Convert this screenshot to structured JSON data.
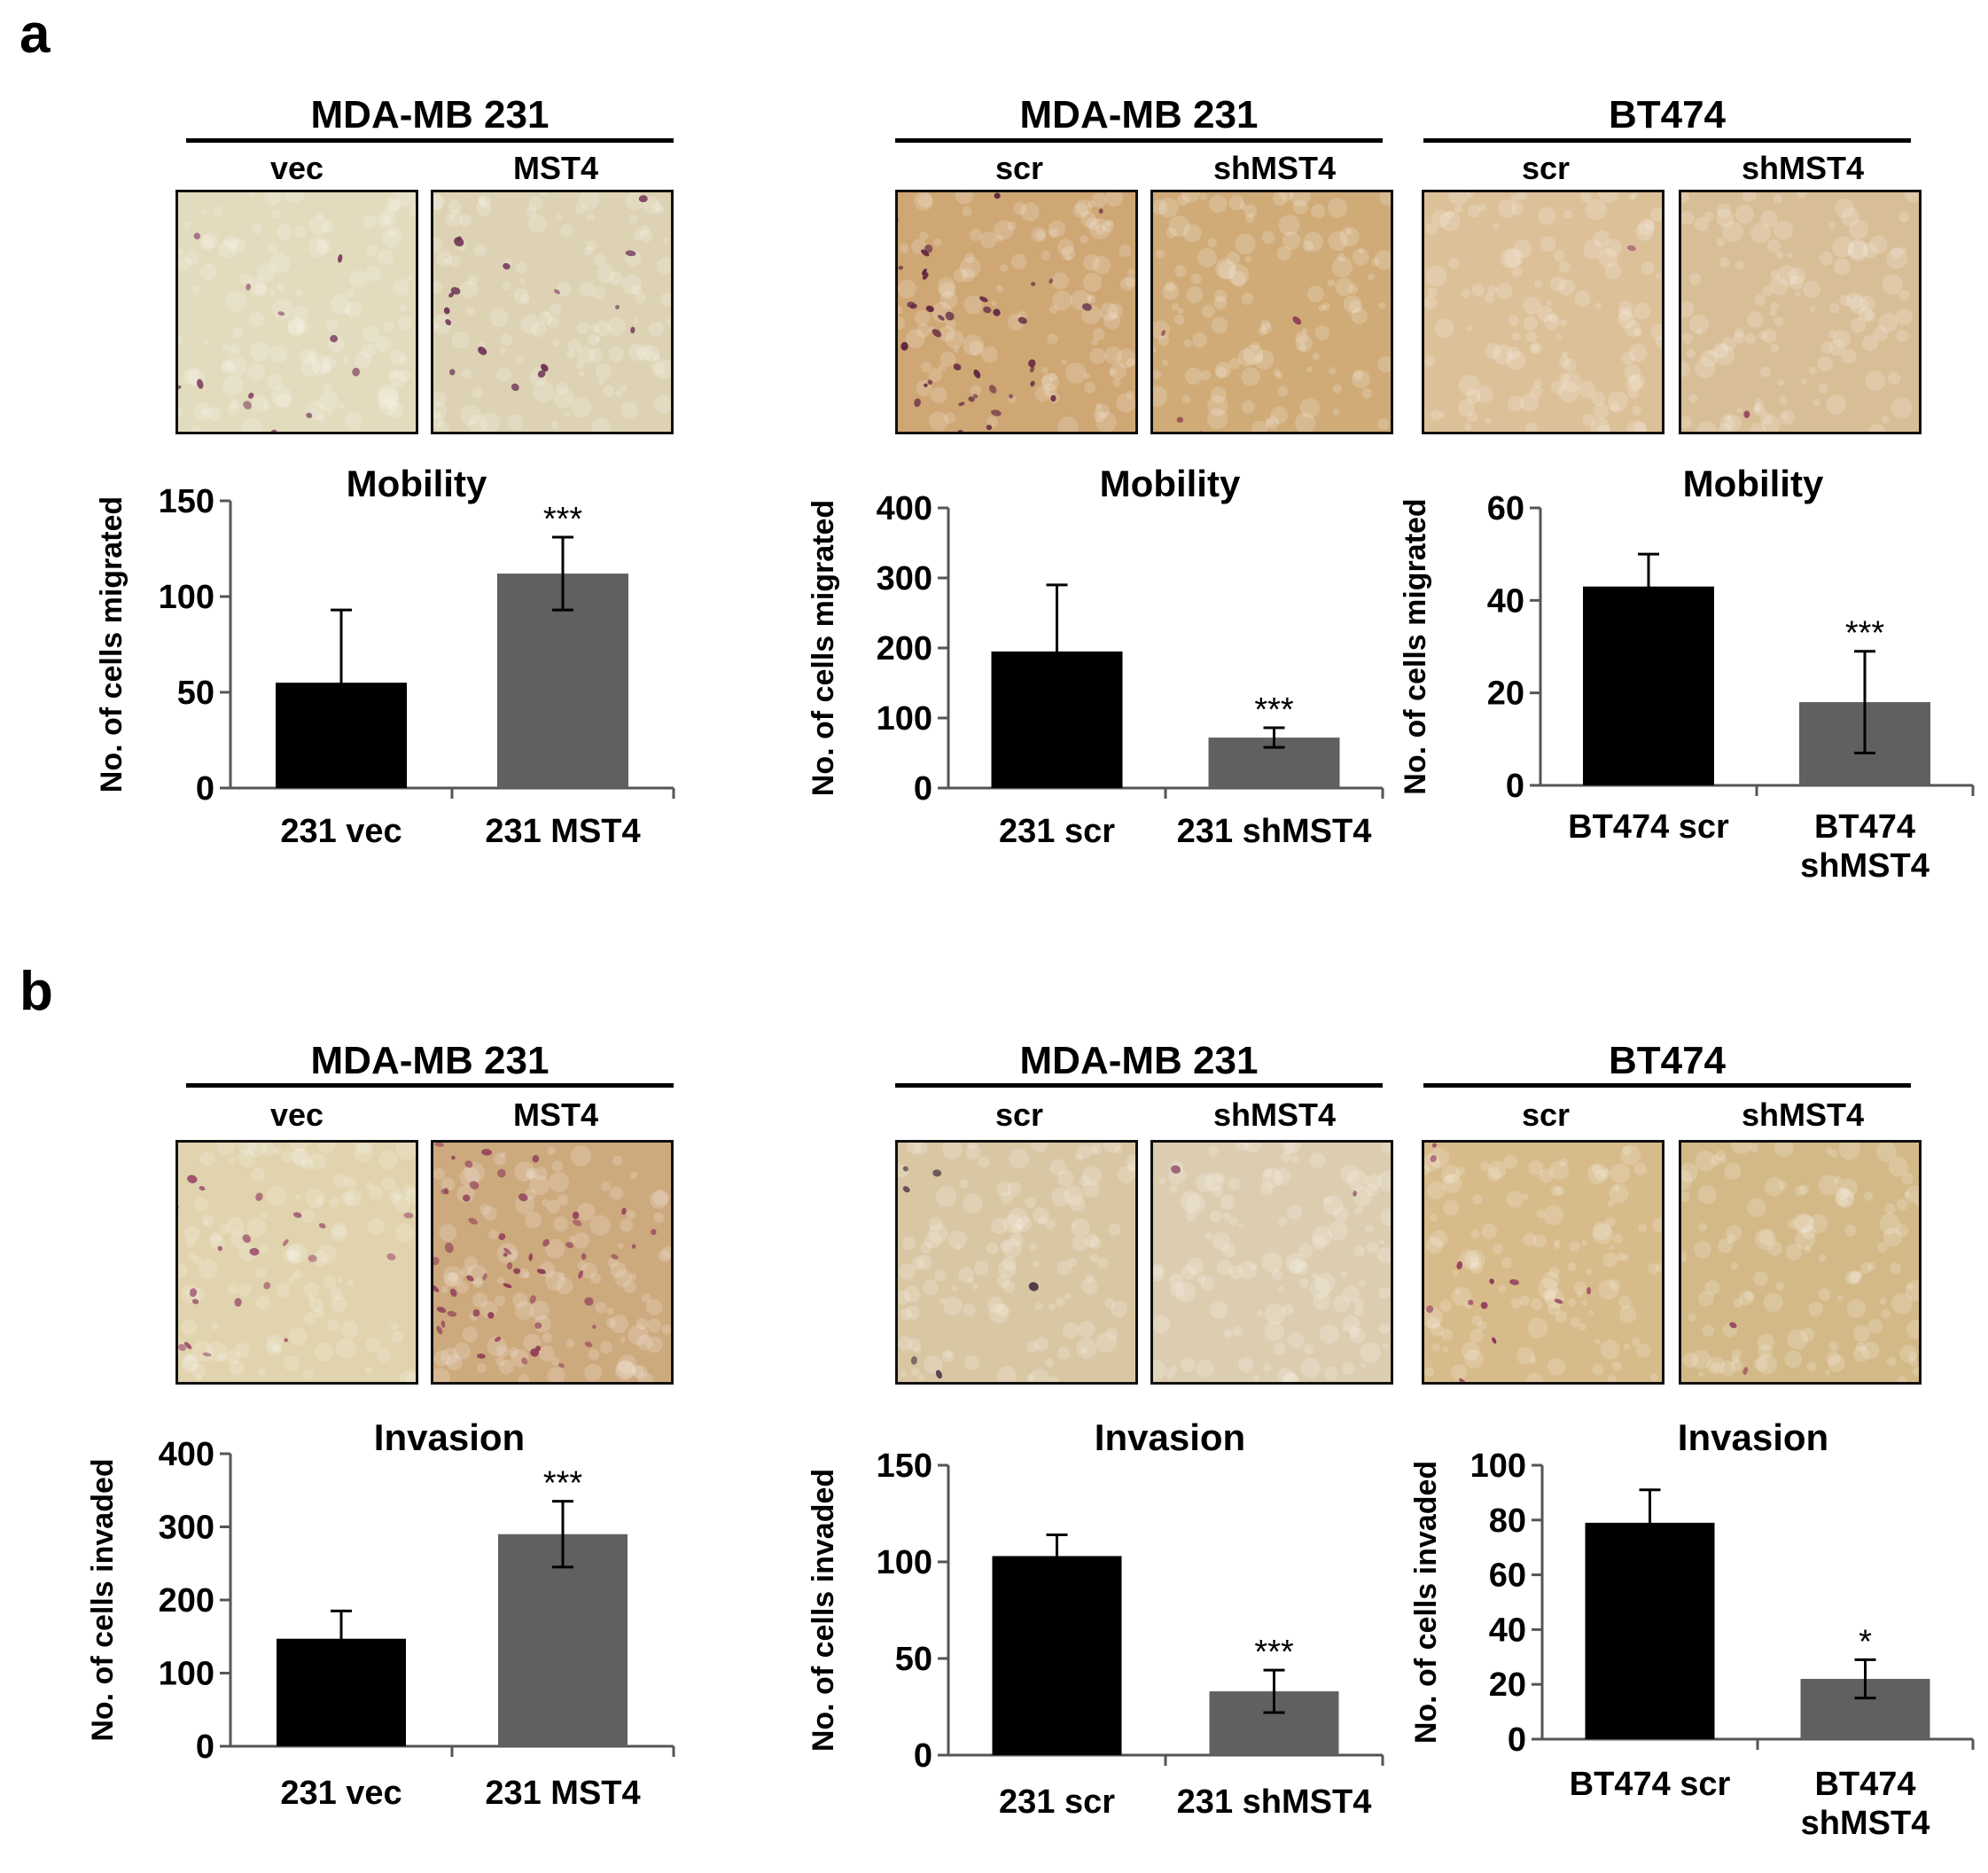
{
  "panels": [
    {
      "label": "a",
      "groups": [
        {
          "title": "MDA-MB 231",
          "conditions": [
            "vec",
            "MST4"
          ]
        },
        {
          "title": "MDA-MB 231",
          "conditions": [
            "scr",
            "shMST4"
          ]
        },
        {
          "title": "BT474",
          "conditions": [
            "scr",
            "shMST4"
          ]
        }
      ],
      "images": [
        {
          "icon": "micrograph-231-vec-migration",
          "bg": "#e3dbbd",
          "cell": "#7b3a5e",
          "density": 35
        },
        {
          "icon": "micrograph-231-mst4-migration",
          "bg": "#ddd3b4",
          "cell": "#6e2f55",
          "density": 80
        },
        {
          "icon": "micrograph-231-scr-migration",
          "bg": "#cfa774",
          "cell": "#5d1f3f",
          "density": 160
        },
        {
          "icon": "micrograph-231-shmst4-migration",
          "bg": "#d0ab78",
          "cell": "#8e3650",
          "density": 10
        },
        {
          "icon": "micrograph-bt474-scr-migration",
          "bg": "#dcc098",
          "cell": "#9b4766",
          "density": 14
        },
        {
          "icon": "micrograph-bt474-shmst4-migration",
          "bg": "#d8be96",
          "cell": "#8a3a55",
          "density": 8
        }
      ]
    },
    {
      "label": "b",
      "groups": [
        {
          "title": "MDA-MB 231",
          "conditions": [
            "vec",
            "MST4"
          ]
        },
        {
          "title": "MDA-MB 231",
          "conditions": [
            "scr",
            "shMST4"
          ]
        },
        {
          "title": "BT474",
          "conditions": [
            "scr",
            "shMST4"
          ]
        }
      ],
      "images": [
        {
          "icon": "micrograph-231-vec-invasion",
          "bg": "#e0d3ad",
          "cell": "#9a4a6a",
          "density": 110
        },
        {
          "icon": "micrograph-231-mst4-invasion",
          "bg": "#cda97e",
          "cell": "#8e3a56",
          "density": 260
        },
        {
          "icon": "micrograph-231-scr-invasion",
          "bg": "#d9c7a4",
          "cell": "#3f2a3e",
          "density": 22
        },
        {
          "icon": "micrograph-231-shmst4-invasion",
          "bg": "#dccdb0",
          "cell": "#9a5a70",
          "density": 6
        },
        {
          "icon": "micrograph-bt474-scr-invasion",
          "bg": "#d7bb8a",
          "cell": "#8d2e5a",
          "density": 50
        },
        {
          "icon": "micrograph-bt474-shmst4-invasion",
          "bg": "#d3b988",
          "cell": "#8a3a55",
          "density": 10
        }
      ]
    }
  ],
  "colors": {
    "control": "#000000",
    "treated": "#606060"
  },
  "chart_data": [
    {
      "type": "bar",
      "title": "Mobility",
      "ylabel": "No. of cells migrated",
      "ylim": [
        0,
        150
      ],
      "yticks": [
        0,
        50,
        100,
        150
      ],
      "categories": [
        "231 vec",
        "231 MST4"
      ],
      "values": [
        55,
        112
      ],
      "errors": [
        38,
        19
      ],
      "annotations": [
        "",
        "***"
      ]
    },
    {
      "type": "bar",
      "title": "Mobility",
      "ylabel": "No. of cells migrated",
      "ylim": [
        0,
        400
      ],
      "yticks": [
        0,
        100,
        200,
        300,
        400
      ],
      "categories": [
        "231 scr",
        "231 shMST4"
      ],
      "values": [
        195,
        72
      ],
      "errors": [
        95,
        14
      ],
      "annotations": [
        "",
        "***"
      ]
    },
    {
      "type": "bar",
      "title": "Mobility",
      "ylabel": "No. of cells migrated",
      "ylim": [
        0,
        60
      ],
      "yticks": [
        0,
        20,
        40,
        60
      ],
      "categories": [
        "BT474 scr",
        "BT474 shMST4"
      ],
      "values": [
        43,
        18
      ],
      "errors": [
        7,
        11
      ],
      "annotations": [
        "",
        "***"
      ]
    },
    {
      "type": "bar",
      "title": "Invasion",
      "ylabel": "No. of cells invaded",
      "ylim": [
        0,
        400
      ],
      "yticks": [
        0,
        100,
        200,
        300,
        400
      ],
      "categories": [
        "231 vec",
        "231 MST4"
      ],
      "values": [
        147,
        290
      ],
      "errors": [
        38,
        45
      ],
      "annotations": [
        "",
        "***"
      ]
    },
    {
      "type": "bar",
      "title": "Invasion",
      "ylabel": "No. of cells invaded",
      "ylim": [
        0,
        150
      ],
      "yticks": [
        0,
        50,
        100,
        150
      ],
      "categories": [
        "231 scr",
        "231 shMST4"
      ],
      "values": [
        103,
        33
      ],
      "errors": [
        11,
        11
      ],
      "annotations": [
        "",
        "***"
      ]
    },
    {
      "type": "bar",
      "title": "Invasion",
      "ylabel": "No. of cells invaded",
      "ylim": [
        0,
        100
      ],
      "yticks": [
        0,
        20,
        40,
        60,
        80,
        100
      ],
      "categories": [
        "BT474 scr",
        "BT474 shMST4"
      ],
      "values": [
        79,
        22
      ],
      "errors": [
        12,
        7
      ],
      "annotations": [
        "",
        "*"
      ]
    }
  ]
}
